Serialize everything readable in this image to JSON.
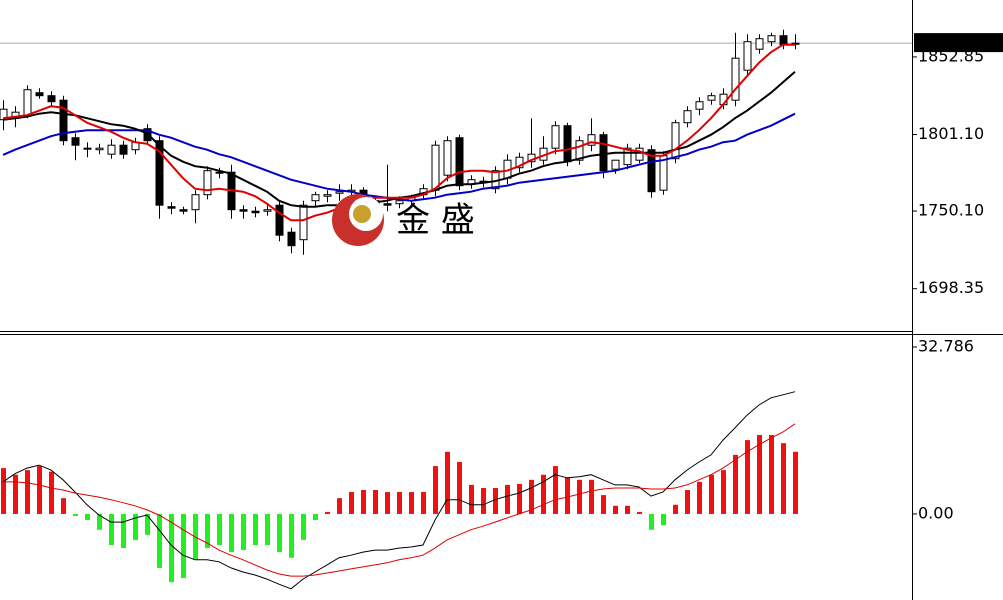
{
  "chart_data": [
    {
      "type": "candlestick",
      "watermark": "金 盛",
      "last_price": 1862.06,
      "ylim": [
        1670.8,
        1890.8
      ],
      "yticks": [
        1852.85,
        {
          "value": 1801.1,
          "label": "1801.10"
        },
        {
          "value": 1750.1,
          "label": "1750.10"
        },
        1698.35
      ],
      "up_color": "#ffffff",
      "down_color": "#000000",
      "open": [
        1811,
        1812,
        1814,
        1829,
        1827,
        1824,
        1799,
        1792,
        1791,
        1788,
        1794,
        1791,
        1805,
        1797,
        1753,
        1751,
        1751,
        1761,
        1776,
        1776,
        1751,
        1750,
        1750,
        1754,
        1736,
        1731,
        1757,
        1760,
        1762,
        1763,
        1764,
        1757,
        1755,
        1755,
        1757,
        1761,
        1764,
        1774,
        1799,
        1768,
        1770,
        1765,
        1772,
        1779,
        1783,
        1784,
        1792,
        1807,
        1784,
        1794,
        1801,
        1778,
        1781,
        1784,
        1791,
        1764,
        1785,
        1809,
        1818,
        1824,
        1821,
        1824,
        1844,
        1858,
        1863,
        1867,
        1862
      ],
      "high": [
        1824,
        1820,
        1834,
        1832,
        1830,
        1827,
        1802,
        1796,
        1795,
        1798,
        1797,
        1799,
        1808,
        1800,
        1756,
        1753,
        1764,
        1780,
        1779,
        1781,
        1754,
        1753,
        1754,
        1757,
        1739,
        1757,
        1763,
        1764,
        1768,
        1768,
        1766,
        1759,
        1781,
        1760,
        1761,
        1768,
        1797,
        1800,
        1801,
        1774,
        1773,
        1780,
        1788,
        1789,
        1812,
        1800,
        1810,
        1809,
        1800,
        1812,
        1803,
        1784,
        1795,
        1795,
        1794,
        1790,
        1811,
        1820,
        1826,
        1829,
        1832,
        1869,
        1868,
        1868,
        1869,
        1871,
        1868
      ],
      "low": [
        1804,
        1806,
        1812,
        1825,
        1820,
        1794,
        1784,
        1786,
        1788,
        1785,
        1785,
        1788,
        1795,
        1745,
        1748,
        1748,
        1742,
        1758,
        1772,
        1745,
        1745,
        1746,
        1747,
        1730,
        1722,
        1721,
        1753,
        1756,
        1757,
        1760,
        1755,
        1750,
        1750,
        1752,
        1754,
        1758,
        1760,
        1770,
        1764,
        1765,
        1766,
        1762,
        1768,
        1776,
        1779,
        1781,
        1788,
        1780,
        1781,
        1790,
        1772,
        1775,
        1778,
        1782,
        1759,
        1761,
        1782,
        1806,
        1814,
        1821,
        1818,
        1820,
        1840,
        1855,
        1860,
        1858,
        1858
      ],
      "close": [
        1818,
        1816,
        1831,
        1827,
        1823,
        1797,
        1794,
        1792,
        1792,
        1794,
        1788,
        1796,
        1797,
        1754,
        1752,
        1750,
        1761,
        1777,
        1776,
        1751,
        1750,
        1749,
        1751,
        1734,
        1727,
        1754,
        1761,
        1761,
        1763,
        1764,
        1758,
        1754,
        1754,
        1757,
        1759,
        1765,
        1794,
        1797,
        1767,
        1771,
        1769,
        1777,
        1784,
        1786,
        1788,
        1792,
        1807,
        1783,
        1797,
        1801,
        1777,
        1784,
        1792,
        1792,
        1763,
        1787,
        1809,
        1817,
        1823,
        1827,
        1828,
        1852,
        1863,
        1865,
        1867,
        1861,
        1862
      ],
      "lines": [
        {
          "color": "#0000c8",
          "values": [
            1787.5,
            1791,
            1794,
            1797,
            1800,
            1802,
            1803,
            1804,
            1804,
            1804,
            1804,
            1804,
            1804,
            1801,
            1799,
            1796,
            1793,
            1791,
            1788,
            1786,
            1783,
            1780,
            1777,
            1774,
            1771,
            1769,
            1767,
            1765,
            1764,
            1763,
            1761,
            1760,
            1759,
            1758,
            1757,
            1758,
            1759,
            1761,
            1762,
            1763,
            1765,
            1766,
            1767,
            1769,
            1770,
            1771,
            1772,
            1773,
            1774,
            1775,
            1776,
            1777,
            1779,
            1781,
            1783,
            1784,
            1786,
            1788,
            1791,
            1793,
            1796,
            1797,
            1801,
            1804,
            1807,
            1811,
            1815
          ]
        },
        {
          "color": "#000000",
          "values": [
            1811,
            1812,
            1813,
            1815,
            1816,
            1815,
            1814,
            1812,
            1810,
            1808,
            1807,
            1805,
            1802,
            1794,
            1787,
            1783,
            1780,
            1779,
            1777,
            1775,
            1771,
            1767,
            1763,
            1757,
            1754,
            1753,
            1753,
            1754,
            1754,
            1755,
            1755,
            1756,
            1757,
            1759,
            1760,
            1762,
            1764,
            1767,
            1768,
            1768,
            1769,
            1770,
            1772,
            1775,
            1777,
            1780,
            1782,
            1783,
            1785,
            1787,
            1788,
            1789,
            1789,
            1789,
            1789,
            1789,
            1791,
            1793,
            1797,
            1801,
            1806,
            1812,
            1817,
            1823,
            1829,
            1836,
            1843
          ]
        },
        {
          "color": "#e00000",
          "values": [
            1812,
            1813,
            1814,
            1817,
            1820,
            1819,
            1814,
            1809,
            1806,
            1803,
            1799,
            1796,
            1795,
            1790,
            1781,
            1772,
            1765,
            1764,
            1765,
            1764,
            1763,
            1760,
            1755,
            1749,
            1744,
            1744,
            1747,
            1749,
            1752,
            1755,
            1757,
            1759,
            1759,
            1759,
            1759,
            1761,
            1765,
            1772,
            1776,
            1777,
            1777,
            1776,
            1777,
            1780,
            1784,
            1787,
            1790,
            1791,
            1793,
            1796,
            1795,
            1793,
            1791,
            1790,
            1787,
            1787,
            1791,
            1797,
            1804,
            1812,
            1821,
            1831,
            1840,
            1849,
            1856,
            1861,
            1861
          ]
        }
      ]
    },
    {
      "type": "macd",
      "ylim": [
        -16.9,
        35.14
      ],
      "yticks": [
        32.786,
        {
          "value": 0,
          "label": "0.00"
        }
      ],
      "positive_color": "#ee1111",
      "negative_color": "#22ee22",
      "values": [
        9.0,
        7.7,
        8.6,
        9.4,
        8.3,
        3.1,
        -0.4,
        -1.2,
        -3.1,
        -6.1,
        -6.7,
        -5.1,
        -4.1,
        -10.6,
        -13.4,
        -12.6,
        -9.0,
        -6.7,
        -6.1,
        -7.5,
        -7.1,
        -6.1,
        -6.1,
        -7.5,
        -8.6,
        -5.1,
        -1.2,
        0.4,
        3.1,
        4.3,
        4.7,
        4.7,
        4.3,
        4.3,
        4.3,
        4.3,
        9.4,
        12.2,
        10.2,
        5.7,
        5.1,
        5.1,
        5.7,
        5.9,
        6.7,
        7.7,
        9.4,
        7.1,
        6.7,
        6.7,
        3.7,
        1.6,
        1.6,
        0.4,
        -3.1,
        -2.2,
        1.8,
        4.7,
        6.3,
        7.7,
        8.6,
        11.6,
        14.5,
        15.5,
        15.5,
        13.9,
        12.2
      ],
      "lines": [
        {
          "color": "#000000",
          "values": [
            6.3,
            7.9,
            9.0,
            9.6,
            8.6,
            6.7,
            4.3,
            1.8,
            -0.2,
            -1.6,
            -1.6,
            -0.8,
            -0.2,
            -3.1,
            -6.1,
            -8.1,
            -9.0,
            -9.0,
            -9.4,
            -10.6,
            -11.4,
            -12.0,
            -12.8,
            -13.8,
            -14.7,
            -12.8,
            -11.4,
            -10.0,
            -8.6,
            -8.1,
            -7.5,
            -7.1,
            -7.1,
            -6.7,
            -6.5,
            -6.1,
            -1.2,
            2.8,
            2.8,
            1.8,
            1.8,
            2.8,
            3.5,
            4.1,
            5.1,
            6.3,
            7.7,
            7.1,
            7.3,
            7.7,
            6.7,
            5.7,
            5.7,
            5.3,
            3.5,
            4.3,
            6.7,
            8.6,
            10.2,
            11.6,
            14.5,
            16.9,
            19.4,
            21.4,
            22.8,
            23.4,
            24.0
          ]
        },
        {
          "color": "#e00000",
          "values": [
            6.3,
            6.3,
            6.1,
            5.7,
            5.1,
            4.7,
            4.1,
            3.7,
            3.3,
            2.8,
            2.2,
            1.6,
            0.8,
            -0.2,
            -1.6,
            -3.1,
            -4.5,
            -5.7,
            -7.1,
            -8.1,
            -9.0,
            -10.0,
            -11.0,
            -11.8,
            -12.2,
            -12.2,
            -12.0,
            -11.6,
            -11.2,
            -10.8,
            -10.4,
            -10.0,
            -9.6,
            -9.0,
            -8.6,
            -8.1,
            -6.7,
            -5.1,
            -4.1,
            -3.1,
            -2.4,
            -1.6,
            -0.8,
            0.0,
            0.8,
            1.8,
            2.8,
            3.3,
            3.9,
            4.5,
            4.9,
            5.1,
            5.1,
            5.1,
            4.9,
            4.9,
            5.1,
            5.7,
            6.7,
            7.7,
            9.0,
            10.6,
            12.2,
            13.6,
            14.9,
            16.1,
            17.7
          ]
        }
      ]
    }
  ]
}
